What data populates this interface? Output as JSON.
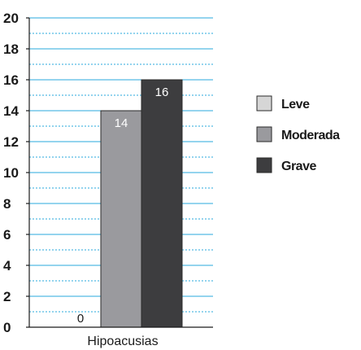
{
  "chart_data": {
    "type": "bar",
    "categories": [
      "Hipoacusias"
    ],
    "series": [
      {
        "name": "Leve",
        "values": [
          0
        ],
        "color": "#d6d6d6"
      },
      {
        "name": "Moderada",
        "values": [
          14
        ],
        "color": "#9a9a9e"
      },
      {
        "name": "Grave",
        "values": [
          16
        ],
        "color": "#3d3d3f"
      }
    ],
    "ylim": [
      0,
      20
    ],
    "yticks": [
      0,
      2,
      4,
      6,
      8,
      10,
      12,
      14,
      16,
      18,
      20
    ],
    "grid": true,
    "grid_color": "#29a8dc",
    "legend_position": "right",
    "data_labels": [
      "0",
      "14",
      "16"
    ]
  }
}
